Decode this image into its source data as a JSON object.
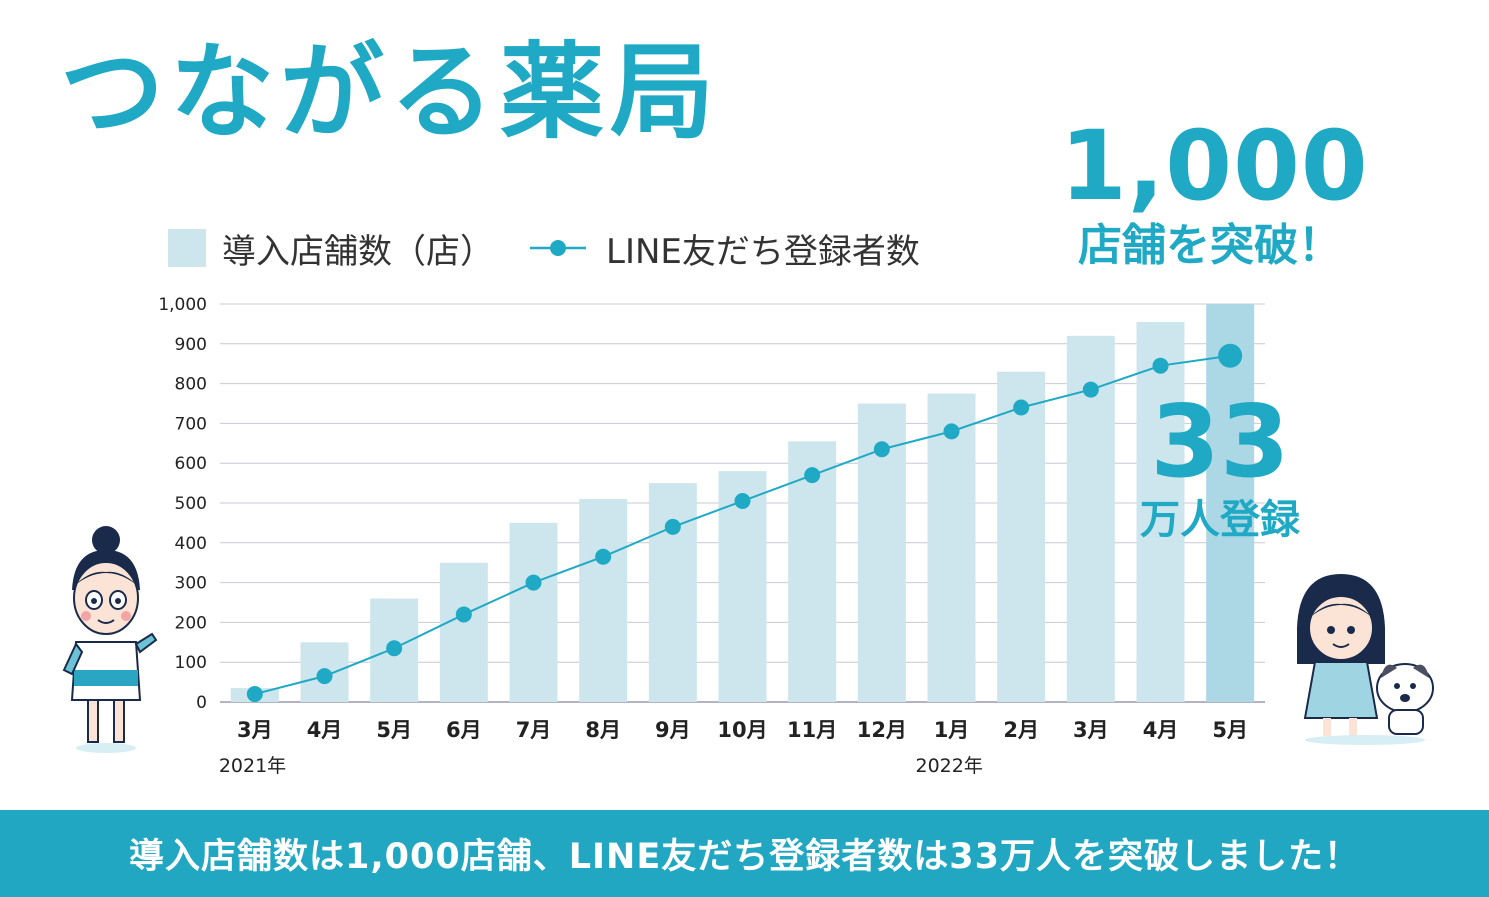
{
  "title": "つながる薬局",
  "legend": {
    "bars_label": "導入店舗数（店）",
    "line_label": "LINE友だち登録者数"
  },
  "callouts": {
    "stores_number": "1,000",
    "stores_text": "店舗を突破！",
    "friends_number": "33",
    "friends_text": "万人登録"
  },
  "banner_text": "導入店舗数は1,000店舗、LINE友だち登録者数は33万人を突破しました！",
  "colors": {
    "accent": "#1fa9c4",
    "bar": "#cde6ee",
    "bar_highlight": "#acd8e5",
    "banner": "#22a7c3",
    "grid": "#c9c9d6"
  },
  "chart_data": {
    "type": "bar",
    "title": "",
    "xlabel": "",
    "ylabel": "",
    "ylim": [
      0,
      1000
    ],
    "y_ticks": [
      "0",
      "100",
      "200",
      "300",
      "400",
      "500",
      "600",
      "700",
      "800",
      "900",
      "1,000"
    ],
    "categories": [
      "3月",
      "4月",
      "5月",
      "6月",
      "7月",
      "8月",
      "9月",
      "10月",
      "11月",
      "12月",
      "1月",
      "2月",
      "3月",
      "4月",
      "5月"
    ],
    "year_labels": [
      {
        "category_index": 0,
        "text": "2021年"
      },
      {
        "category_index": 10,
        "text": "2022年"
      }
    ],
    "series": [
      {
        "name": "導入店舗数（店）",
        "type": "bar",
        "values": [
          35,
          150,
          260,
          350,
          450,
          510,
          550,
          580,
          655,
          750,
          775,
          830,
          920,
          955,
          1000
        ]
      },
      {
        "name": "LINE友だち登録者数",
        "type": "line",
        "values": [
          20,
          65,
          135,
          220,
          300,
          365,
          440,
          505,
          570,
          635,
          680,
          740,
          785,
          845,
          870
        ]
      }
    ]
  }
}
